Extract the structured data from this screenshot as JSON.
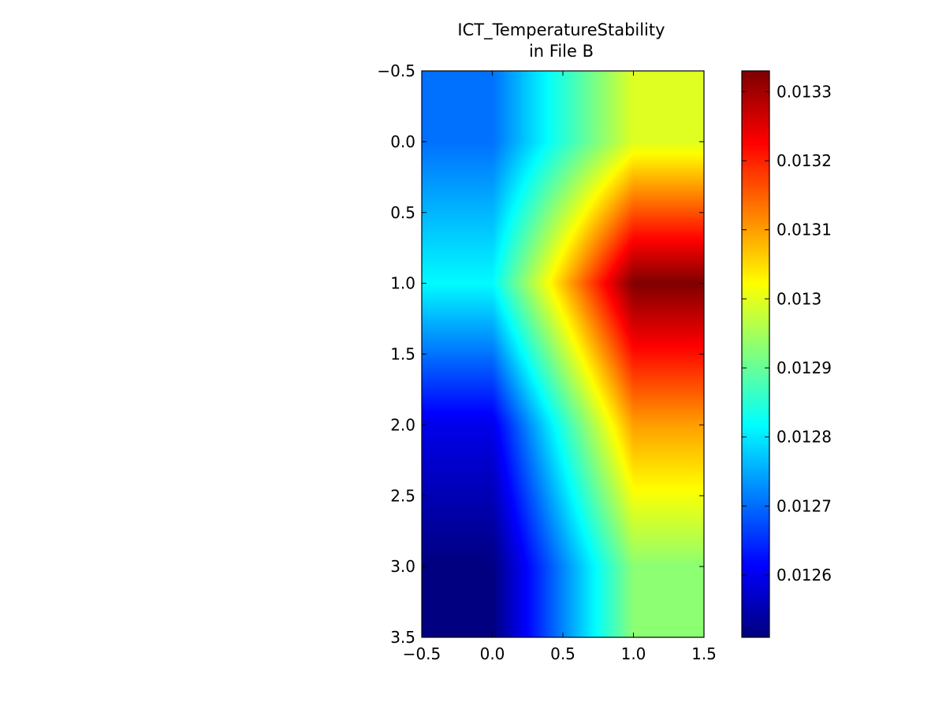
{
  "chart_data": {
    "type": "heatmap",
    "title": "ICT_TemperatureStability\nin File B",
    "colormap": "jet",
    "interpolation": "bilinear",
    "xlim": [
      -0.5,
      1.5
    ],
    "ylim": [
      3.5,
      -0.5
    ],
    "x_ticks": [
      -0.5,
      0.0,
      0.5,
      1.0,
      1.5
    ],
    "x_tick_labels": [
      "−0.5",
      "0.0",
      "0.5",
      "1.0",
      "1.5"
    ],
    "y_ticks": [
      -0.5,
      0.0,
      0.5,
      1.0,
      1.5,
      2.0,
      2.5,
      3.0,
      3.5
    ],
    "y_tick_labels": [
      "−0.5",
      "0.0",
      "0.5",
      "1.0",
      "1.5",
      "2.0",
      "2.5",
      "3.0",
      "3.5"
    ],
    "xlabel": "",
    "ylabel": "",
    "grid": false,
    "x": [
      0,
      1
    ],
    "y": [
      0,
      1,
      2,
      3
    ],
    "values": [
      [
        0.012703,
        0.012996
      ],
      [
        0.012815,
        0.01333
      ],
      [
        0.012595,
        0.0131
      ],
      [
        0.01251,
        0.01293
      ]
    ],
    "colorbar": {
      "vmin": 0.01251,
      "vmax": 0.01333,
      "ticks": [
        0.0126,
        0.0127,
        0.0128,
        0.0129,
        0.013,
        0.0131,
        0.0132,
        0.0133
      ],
      "tick_labels": [
        "0.0126",
        "0.0127",
        "0.0128",
        "0.0129",
        "0.013",
        "0.0131",
        "0.0132",
        "0.0133"
      ]
    }
  }
}
